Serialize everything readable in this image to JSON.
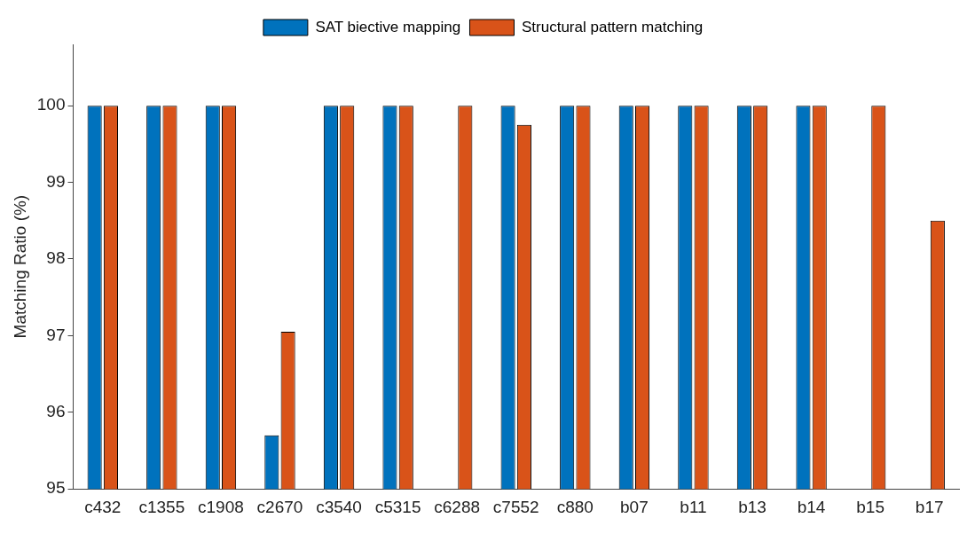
{
  "chart_data": {
    "type": "bar",
    "ylabel": "Matching Ratio (%)",
    "categories": [
      "c432",
      "c1355",
      "c1908",
      "c2670",
      "c3540",
      "c5315",
      "c6288",
      "c7552",
      "c880",
      "b07",
      "b11",
      "b13",
      "b14",
      "b15",
      "b17"
    ],
    "series": [
      {
        "name": "SAT biective mapping",
        "color": "#0072bd",
        "values": [
          100,
          100,
          100,
          95.7,
          100,
          100,
          null,
          100,
          100,
          100,
          100,
          100,
          100,
          null,
          null
        ]
      },
      {
        "name": "Structural pattern matching",
        "color": "#d95319",
        "values": [
          100,
          100,
          100,
          97.05,
          100,
          100,
          100,
          99.75,
          100,
          100,
          100,
          100,
          100,
          100,
          98.5
        ]
      }
    ],
    "ylim": [
      95,
      100.8
    ],
    "yticks": [
      95,
      96,
      97,
      98,
      99,
      100
    ],
    "grid": false,
    "legend": "top"
  }
}
